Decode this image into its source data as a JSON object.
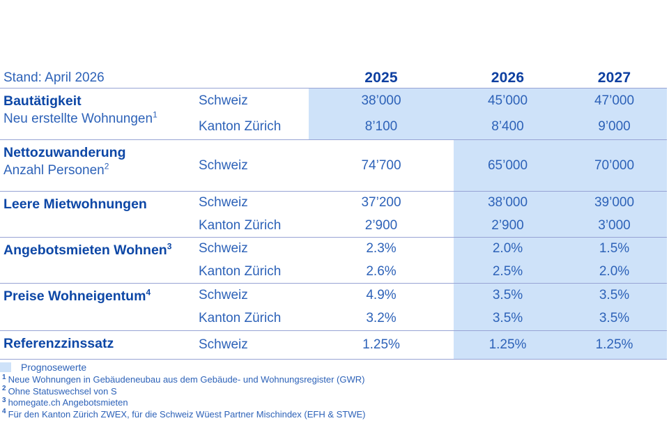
{
  "meta": {
    "stand_label": "Stand: April 2026"
  },
  "years": [
    "2025",
    "2026",
    "2027"
  ],
  "rows": [
    {
      "title": "Bautätigkeit",
      "title_sup": "",
      "subtitle": "Neu erstellte Wohnungen",
      "subtitle_sup": "1",
      "entries": [
        {
          "geo": "Schweiz",
          "values": [
            "38’000",
            "45’000",
            "47’000"
          ]
        },
        {
          "geo": "Kanton Zürich",
          "values": [
            "8’100",
            "8’400",
            "9’000"
          ]
        }
      ],
      "forecast_years": [
        "2025",
        "2026",
        "2027"
      ]
    },
    {
      "title": "Nettozuwanderung",
      "title_sup": "",
      "subtitle": "Anzahl Personen",
      "subtitle_sup": "2",
      "entries": [
        {
          "geo": "Schweiz",
          "values": [
            "74’700",
            "65’000",
            "70’000"
          ]
        }
      ],
      "forecast_years": [
        "2026",
        "2027"
      ]
    },
    {
      "title": "Leere Mietwohnungen",
      "title_sup": "",
      "subtitle": "",
      "subtitle_sup": "",
      "entries": [
        {
          "geo": "Schweiz",
          "values": [
            "37’200",
            "38’000",
            "39’000"
          ]
        },
        {
          "geo": "Kanton Zürich",
          "values": [
            "2’900",
            "2’900",
            "3’000"
          ]
        }
      ],
      "forecast_years": [
        "2026",
        "2027"
      ]
    },
    {
      "title": "Angebotsmieten Wohnen",
      "title_sup": "3",
      "subtitle": "",
      "subtitle_sup": "",
      "entries": [
        {
          "geo": "Schweiz",
          "values": [
            "2.3%",
            "2.0%",
            "1.5%"
          ]
        },
        {
          "geo": "Kanton Zürich",
          "values": [
            "2.6%",
            "2.5%",
            "2.0%"
          ]
        }
      ],
      "forecast_years": [
        "2026",
        "2027"
      ]
    },
    {
      "title": "Preise Wohneigentum",
      "title_sup": "4",
      "subtitle": "",
      "subtitle_sup": "",
      "entries": [
        {
          "geo": "Schweiz",
          "values": [
            "4.9%",
            "3.5%",
            "3.5%"
          ]
        },
        {
          "geo": "Kanton Zürich",
          "values": [
            "3.2%",
            "3.5%",
            "3.5%"
          ]
        }
      ],
      "forecast_years": [
        "2026",
        "2027"
      ]
    },
    {
      "title": "Referenzzinssatz",
      "title_sup": "",
      "subtitle": "",
      "subtitle_sup": "",
      "entries": [
        {
          "geo": "Schweiz",
          "values": [
            "1.25%",
            "1.25%",
            "1.25%"
          ]
        }
      ],
      "forecast_years": [
        "2026",
        "2027"
      ]
    }
  ],
  "legend": {
    "label": "Prognosewerte"
  },
  "footnotes": [
    {
      "sup": "1",
      "text": "Neue Wohnungen in Gebäudeneubau aus dem Gebäude- und Wohnungsregister (GWR)"
    },
    {
      "sup": "2",
      "text": "Ohne Statuswechsel von S"
    },
    {
      "sup": "3",
      "text": "homegate.ch Angebotsmieten"
    },
    {
      "sup": "4",
      "text": "Für den Kanton Zürich ZWEX, für die Schweiz Wüest Partner Mischindex (EFH & STWE)"
    }
  ],
  "colors": {
    "title_blue": "#0d47a6",
    "text_blue": "#2d62b8",
    "year_blue": "#0d3fa0",
    "separator": "#97a3d4",
    "forecast_bg": "#cee2f9"
  }
}
